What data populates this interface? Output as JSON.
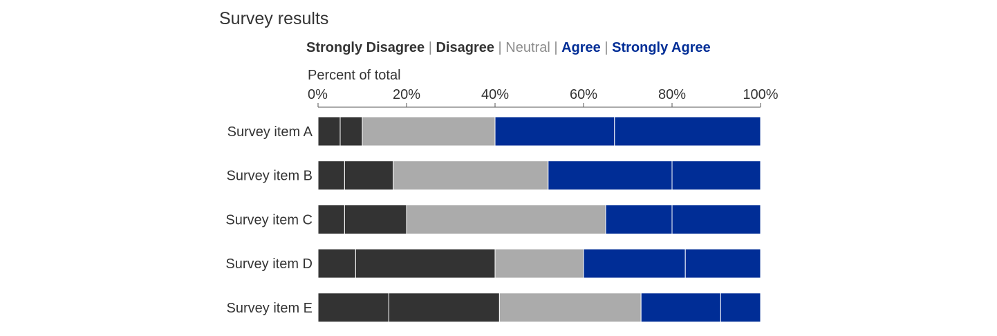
{
  "chart_data": {
    "type": "bar",
    "orientation": "horizontal",
    "stacked": true,
    "title": "Survey results",
    "xlabel": "Percent of total",
    "ylabel": "",
    "xlim": [
      0,
      100
    ],
    "ticks": [
      0,
      20,
      40,
      60,
      80,
      100
    ],
    "tick_labels": [
      "0%",
      "20%",
      "40%",
      "60%",
      "80%",
      "100%"
    ],
    "grid": false,
    "legend_position": "top",
    "legend_separator": "|",
    "categories": [
      "Survey item A",
      "Survey item B",
      "Survey item C",
      "Survey item D",
      "Survey item E"
    ],
    "series": [
      {
        "name": "Strongly Disagree",
        "color": "#333333",
        "label_color": "#333333",
        "bold": true,
        "values": [
          5,
          6,
          6,
          8.5,
          16
        ]
      },
      {
        "name": "Disagree",
        "color": "#333333",
        "label_color": "#333333",
        "bold": true,
        "values": [
          5,
          11,
          14,
          31.5,
          25
        ]
      },
      {
        "name": "Neutral",
        "color": "#ababab",
        "label_color": "#8c8c8c",
        "bold": false,
        "values": [
          30,
          35,
          45,
          20,
          32
        ]
      },
      {
        "name": "Agree",
        "color": "#002d96",
        "label_color": "#002d96",
        "bold": true,
        "values": [
          27,
          28,
          15,
          23,
          18
        ]
      },
      {
        "name": "Strongly Agree",
        "color": "#002d96",
        "label_color": "#002d96",
        "bold": true,
        "values": [
          33,
          20,
          20,
          17,
          9
        ]
      }
    ]
  }
}
